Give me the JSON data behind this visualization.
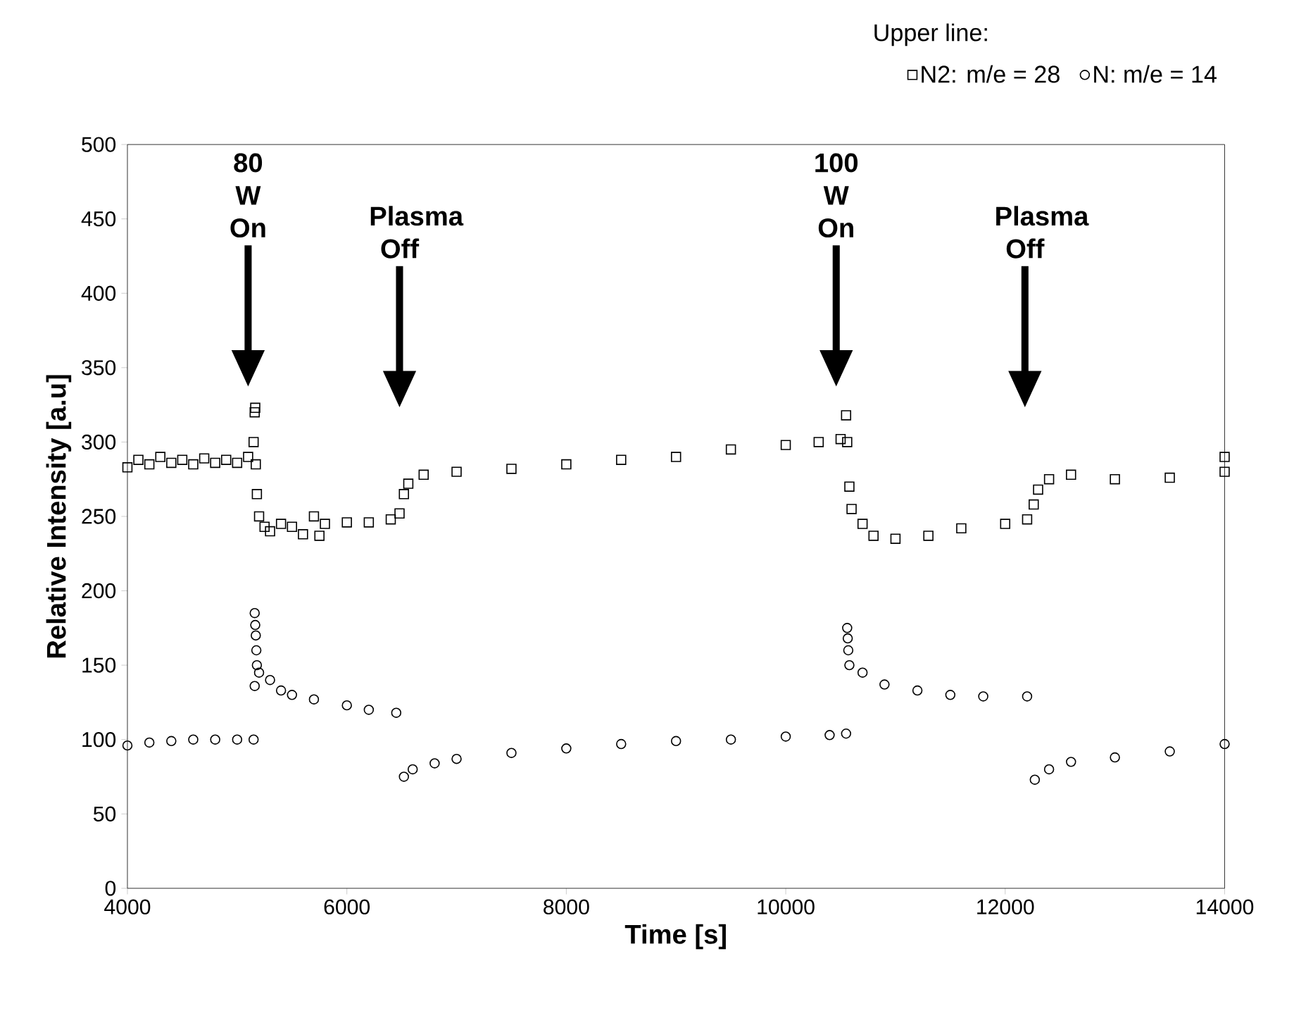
{
  "chart_data": {
    "type": "scatter",
    "xlabel": "Time [s]",
    "ylabel": "Relative Intensity [a.u]",
    "legend_title": "Upper line:",
    "legend": "top right",
    "xlim": [
      4000,
      14000
    ],
    "xticks": [
      4000,
      6000,
      8000,
      10000,
      12000,
      14000
    ],
    "ylim": [
      0,
      500
    ],
    "yticks": [
      0,
      50,
      100,
      150,
      200,
      250,
      300,
      350,
      400,
      450,
      500
    ],
    "annotations": [
      "80 W On",
      "Plasma Off",
      "100 W On",
      "Plasma Off"
    ],
    "series": [
      {
        "name": "N2: m/e = 28",
        "color": "#000000",
        "marker": "square",
        "x": [
          4000,
          4100,
          4200,
          4300,
          4400,
          4500,
          4600,
          4700,
          4800,
          4900,
          5000,
          5100,
          5150,
          5160,
          5165,
          5170,
          5180,
          5200,
          5250,
          5300,
          5400,
          5500,
          5600,
          5700,
          5750,
          5800,
          6000,
          6200,
          6400,
          6480,
          6520,
          6560,
          6700,
          7000,
          7500,
          8000,
          8500,
          9000,
          9500,
          10000,
          10300,
          10500,
          10550,
          10560,
          10580,
          10600,
          10700,
          10800,
          11000,
          11300,
          11600,
          12000,
          12200,
          12260,
          12300,
          12400,
          12600,
          13000,
          13500,
          14000,
          14000
        ],
        "values": [
          283,
          288,
          285,
          290,
          286,
          288,
          285,
          289,
          286,
          288,
          286,
          290,
          300,
          320,
          323,
          285,
          265,
          250,
          243,
          240,
          245,
          243,
          238,
          250,
          237,
          245,
          246,
          246,
          248,
          252,
          265,
          272,
          278,
          280,
          282,
          285,
          288,
          290,
          295,
          298,
          300,
          302,
          318,
          300,
          270,
          255,
          245,
          237,
          235,
          237,
          242,
          245,
          248,
          258,
          268,
          275,
          278,
          275,
          276,
          280,
          290
        ]
      },
      {
        "name": "N: m/e = 14",
        "color": "#000000",
        "marker": "circle",
        "x": [
          4000,
          4200,
          4400,
          4600,
          4800,
          5000,
          5150,
          5160,
          5165,
          5170,
          5175,
          5180,
          5160,
          5200,
          5300,
          5400,
          5500,
          5700,
          6000,
          6200,
          6450,
          6520,
          6600,
          6800,
          7000,
          7500,
          8000,
          8500,
          9000,
          9500,
          10000,
          10400,
          10550,
          10560,
          10565,
          10570,
          10580,
          10700,
          10900,
          11200,
          11500,
          11800,
          12200,
          12270,
          12400,
          12600,
          13000,
          13500,
          14000
        ],
        "values": [
          96,
          98,
          99,
          100,
          100,
          100,
          100,
          185,
          177,
          170,
          160,
          150,
          136,
          145,
          140,
          133,
          130,
          127,
          123,
          120,
          118,
          75,
          80,
          84,
          87,
          91,
          94,
          97,
          99,
          100,
          102,
          103,
          104,
          175,
          168,
          160,
          150,
          145,
          137,
          133,
          130,
          129,
          129,
          73,
          80,
          85,
          88,
          92,
          97
        ]
      }
    ]
  }
}
